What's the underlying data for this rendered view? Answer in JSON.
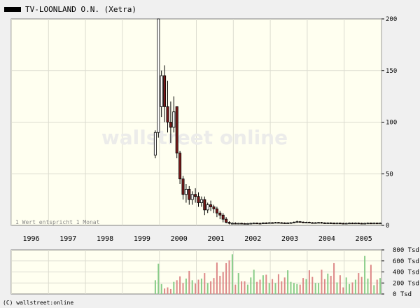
{
  "title": "TV-LOONLAND O.N. (Xetra)",
  "footer": "(C) wallstreet:online",
  "watermark": "wallstreet online",
  "note": "1 Wert entspricht 1 Monat",
  "colors": {
    "background": "#fffff0",
    "grid": "#dcdcd0",
    "up": "#ffffff",
    "down": "#7a1a1a",
    "volume_up": "#88cc88",
    "volume_down": "#dd8888"
  },
  "chart_data": {
    "type": "candlestick",
    "title": "TV-LOONLAND O.N. (Xetra)",
    "x_labels": [
      "1996",
      "1997",
      "1998",
      "1999",
      "2000",
      "2001",
      "2002",
      "2003",
      "2004",
      "2005"
    ],
    "price_axis": {
      "ylim": [
        0,
        200
      ],
      "ticks": [
        "0",
        "50",
        "100",
        "150",
        "200"
      ]
    },
    "volume_axis": {
      "ylim": [
        0,
        800
      ],
      "unit": "Tsd",
      "ticks": [
        "0 Tsd",
        "200 Tsd",
        "400 Tsd",
        "600 Tsd",
        "800 Tsd"
      ]
    },
    "start_month": "1999-11",
    "candles": [
      [
        68,
        90,
        65,
        92
      ],
      [
        90,
        200,
        85,
        200
      ],
      [
        115,
        145,
        105,
        150
      ],
      [
        145,
        115,
        100,
        155
      ],
      [
        115,
        100,
        90,
        140
      ],
      [
        100,
        95,
        80,
        120
      ],
      [
        95,
        110,
        90,
        125
      ],
      [
        115,
        70,
        65,
        115
      ],
      [
        70,
        45,
        40,
        72
      ],
      [
        45,
        30,
        25,
        48
      ],
      [
        30,
        35,
        22,
        40
      ],
      [
        35,
        25,
        20,
        38
      ],
      [
        25,
        30,
        20,
        33
      ],
      [
        30,
        28,
        22,
        36
      ],
      [
        28,
        22,
        18,
        32
      ],
      [
        22,
        25,
        18,
        28
      ],
      [
        25,
        15,
        10,
        28
      ],
      [
        15,
        20,
        12,
        22
      ],
      [
        20,
        18,
        14,
        24
      ],
      [
        18,
        16,
        12,
        20
      ],
      [
        16,
        12,
        8,
        18
      ],
      [
        12,
        10,
        6,
        14
      ],
      [
        10,
        6,
        3,
        12
      ],
      [
        6,
        3,
        2,
        8
      ],
      [
        3,
        2,
        1,
        4
      ],
      [
        2,
        2,
        1,
        3
      ],
      [
        2,
        1.5,
        1,
        3
      ],
      [
        1.5,
        2,
        1,
        2.5
      ],
      [
        2,
        1.8,
        1.2,
        2.6
      ],
      [
        1.8,
        1.6,
        1,
        2.4
      ],
      [
        1.6,
        1.8,
        1.2,
        2.4
      ],
      [
        1.8,
        2,
        1.4,
        2.6
      ],
      [
        2,
        2.2,
        1.6,
        2.8
      ],
      [
        2.2,
        2,
        1.4,
        2.8
      ],
      [
        2,
        1.8,
        1.2,
        2.6
      ],
      [
        1.8,
        2.4,
        1.4,
        3
      ],
      [
        2.4,
        2.2,
        1.6,
        3
      ],
      [
        2.2,
        2.6,
        1.8,
        3.2
      ],
      [
        2.6,
        2.4,
        1.8,
        3.2
      ],
      [
        2.4,
        2.8,
        2,
        3.4
      ],
      [
        2.8,
        2.6,
        2,
        3.4
      ],
      [
        2.6,
        2.4,
        1.8,
        3.2
      ],
      [
        2.4,
        2.2,
        1.6,
        3
      ],
      [
        2.2,
        2.4,
        1.8,
        3
      ],
      [
        2.4,
        2.6,
        1.8,
        3.2
      ],
      [
        2.6,
        3,
        2,
        3.8
      ],
      [
        3,
        3.6,
        2.4,
        4.6
      ],
      [
        3.6,
        3.2,
        2.6,
        4.2
      ],
      [
        3.2,
        2.8,
        2.2,
        3.8
      ],
      [
        2.8,
        3,
        2.2,
        3.6
      ],
      [
        3,
        2.6,
        2,
        3.6
      ],
      [
        2.6,
        2.4,
        1.8,
        3.2
      ],
      [
        2.4,
        2.6,
        1.8,
        3.2
      ],
      [
        2.6,
        2.8,
        2,
        3.4
      ],
      [
        2.8,
        2.4,
        1.8,
        3.4
      ],
      [
        2.4,
        2.2,
        1.6,
        3
      ],
      [
        2.2,
        2.4,
        1.8,
        3
      ],
      [
        2.4,
        2.2,
        1.6,
        3
      ],
      [
        2.2,
        2,
        1.4,
        2.8
      ],
      [
        2,
        2.2,
        1.6,
        2.8
      ],
      [
        2.2,
        2,
        1.4,
        2.8
      ],
      [
        2,
        1.8,
        1.2,
        2.6
      ],
      [
        1.8,
        2,
        1.4,
        2.6
      ],
      [
        2,
        2.2,
        1.6,
        2.8
      ],
      [
        2.2,
        2,
        1.4,
        2.8
      ],
      [
        2,
        2.2,
        1.6,
        2.8
      ],
      [
        2.2,
        2,
        1.4,
        2.8
      ],
      [
        2,
        1.8,
        1.2,
        2.6
      ],
      [
        1.8,
        2,
        1.4,
        2.6
      ],
      [
        2,
        2.2,
        1.6,
        2.8
      ],
      [
        2.2,
        2,
        1.4,
        2.8
      ],
      [
        2,
        2.2,
        1.6,
        2.8
      ],
      [
        2.2,
        2,
        1.4,
        2.8
      ],
      [
        2,
        2.2,
        1.6,
        2.8
      ]
    ],
    "volumes": [
      250,
      550,
      180,
      100,
      120,
      90,
      220,
      250,
      320,
      200,
      280,
      420,
      250,
      190,
      260,
      280,
      380,
      200,
      230,
      290,
      570,
      330,
      400,
      560,
      610,
      720,
      170,
      380,
      230,
      230,
      170,
      300,
      440,
      220,
      260,
      340,
      350,
      200,
      270,
      200,
      360,
      230,
      300,
      430,
      220,
      200,
      180,
      170,
      290,
      270,
      430,
      310,
      200,
      200,
      440,
      270,
      370,
      330,
      560,
      210,
      340,
      120,
      300,
      180,
      210,
      260,
      380,
      310,
      690,
      280,
      530,
      160,
      260,
      290
    ]
  }
}
